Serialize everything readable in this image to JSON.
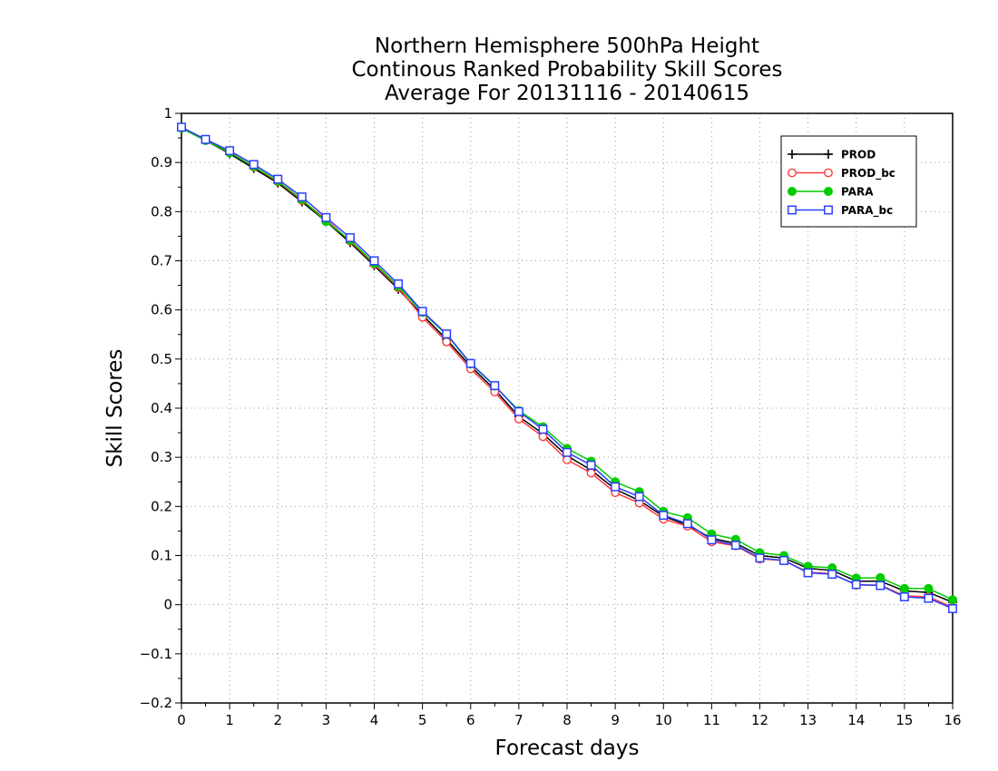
{
  "chart_data": {
    "type": "line",
    "title_lines": [
      "Northern Hemisphere 500hPa Height",
      "Continous Ranked Probability Skill Scores",
      "Average For 20131116 - 20140615"
    ],
    "xlabel": "Forecast days",
    "ylabel": "Skill Scores",
    "xlim": [
      0,
      16
    ],
    "ylim": [
      -0.2,
      1
    ],
    "x_ticks": [
      0,
      1,
      2,
      3,
      4,
      5,
      6,
      7,
      8,
      9,
      10,
      11,
      12,
      13,
      14,
      15,
      16
    ],
    "y_ticks": [
      -0.2,
      -0.1,
      0,
      0.1,
      0.2,
      0.3,
      0.4,
      0.5,
      0.6,
      0.7,
      0.8,
      0.9,
      1
    ],
    "x_tick_labels": [
      "0",
      "1",
      "2",
      "3",
      "4",
      "5",
      "6",
      "7",
      "8",
      "9",
      "10",
      "11",
      "12",
      "13",
      "14",
      "15",
      "16"
    ],
    "y_tick_labels": [
      "−0.2",
      "−0.1",
      "0",
      "0.1",
      "0.2",
      "0.3",
      "0.4",
      "0.5",
      "0.6",
      "0.7",
      "0.8",
      "0.9",
      "1"
    ],
    "grid": true,
    "legend_position": "top-right",
    "x": [
      0,
      0.5,
      1,
      1.5,
      2,
      2.5,
      3,
      3.5,
      4,
      4.5,
      5,
      5.5,
      6,
      6.5,
      7,
      7.5,
      8,
      8.5,
      9,
      9.5,
      10,
      10.5,
      11,
      11.5,
      12,
      12.5,
      13,
      13.5,
      14,
      14.5,
      15,
      15.5,
      16
    ],
    "series": [
      {
        "name": "PROD",
        "color": "#000000",
        "marker": "plus",
        "values": [
          0.97,
          0.945,
          0.918,
          0.888,
          0.858,
          0.82,
          0.78,
          0.737,
          0.69,
          0.642,
          0.59,
          0.54,
          0.485,
          0.438,
          0.383,
          0.348,
          0.303,
          0.274,
          0.235,
          0.212,
          0.18,
          0.162,
          0.135,
          0.125,
          0.1,
          0.095,
          0.074,
          0.07,
          0.048,
          0.048,
          0.028,
          0.025,
          0.005
        ]
      },
      {
        "name": "PROD_bc",
        "color": "#ff3b3b",
        "marker": "open-circle",
        "values": [
          0.972,
          0.946,
          0.921,
          0.891,
          0.861,
          0.823,
          0.784,
          0.74,
          0.693,
          0.645,
          0.585,
          0.535,
          0.48,
          0.433,
          0.378,
          0.342,
          0.295,
          0.268,
          0.228,
          0.207,
          0.174,
          0.16,
          0.128,
          0.12,
          0.093,
          0.09,
          0.066,
          0.063,
          0.04,
          0.04,
          0.018,
          0.016,
          -0.005
        ]
      },
      {
        "name": "PARA",
        "color": "#00cc00",
        "marker": "filled-circle",
        "values": [
          0.97,
          0.945,
          0.92,
          0.892,
          0.862,
          0.825,
          0.78,
          0.742,
          0.695,
          0.648,
          0.595,
          0.55,
          0.49,
          0.445,
          0.395,
          0.362,
          0.318,
          0.292,
          0.25,
          0.23,
          0.19,
          0.177,
          0.144,
          0.133,
          0.106,
          0.1,
          0.078,
          0.075,
          0.054,
          0.055,
          0.033,
          0.033,
          0.01
        ]
      },
      {
        "name": "PARA_bc",
        "color": "#2a3fff",
        "marker": "open-square",
        "values": [
          0.972,
          0.947,
          0.924,
          0.896,
          0.866,
          0.83,
          0.788,
          0.747,
          0.7,
          0.653,
          0.597,
          0.551,
          0.491,
          0.446,
          0.393,
          0.357,
          0.31,
          0.284,
          0.24,
          0.22,
          0.182,
          0.165,
          0.132,
          0.121,
          0.095,
          0.09,
          0.065,
          0.062,
          0.041,
          0.039,
          0.016,
          0.013,
          -0.008
        ]
      }
    ]
  }
}
